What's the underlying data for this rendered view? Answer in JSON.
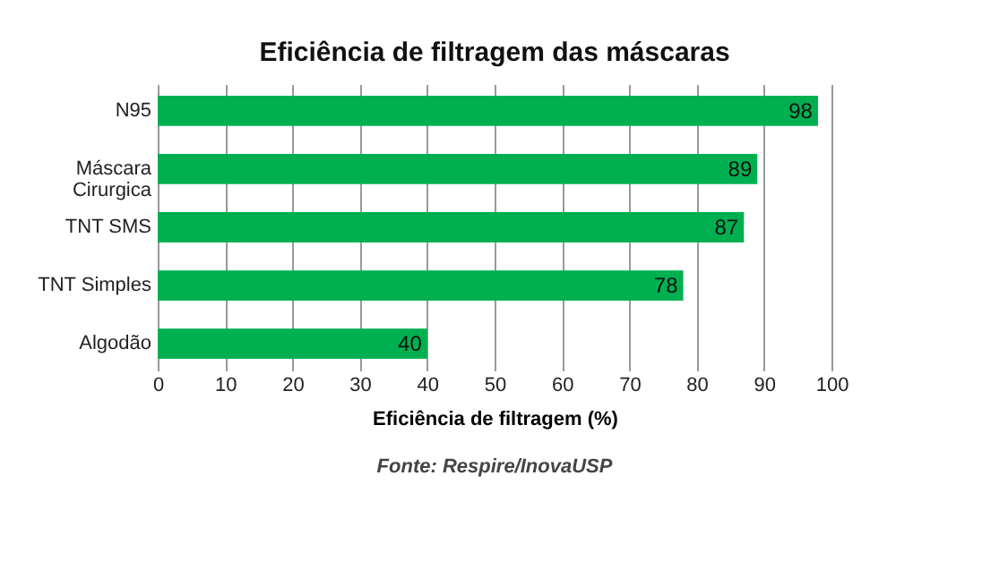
{
  "chart_data": {
    "type": "bar",
    "orientation": "horizontal",
    "title": "Eficiência de filtragem das máscaras",
    "xlabel": "Eficiência de filtragem (%)",
    "categories": [
      "N95",
      "Máscara Cirurgica",
      "TNT SMS",
      "TNT Simples",
      "Algodão"
    ],
    "values": [
      98,
      89,
      87,
      78,
      40
    ],
    "color": "#00b050",
    "xlim": [
      0,
      100
    ],
    "xticks": [
      0,
      10,
      20,
      30,
      40,
      50,
      60,
      70,
      80,
      90,
      100
    ],
    "grid": "x",
    "data_labels": true,
    "annotations": [
      "Fonte: Respire/InovaUSP"
    ]
  }
}
